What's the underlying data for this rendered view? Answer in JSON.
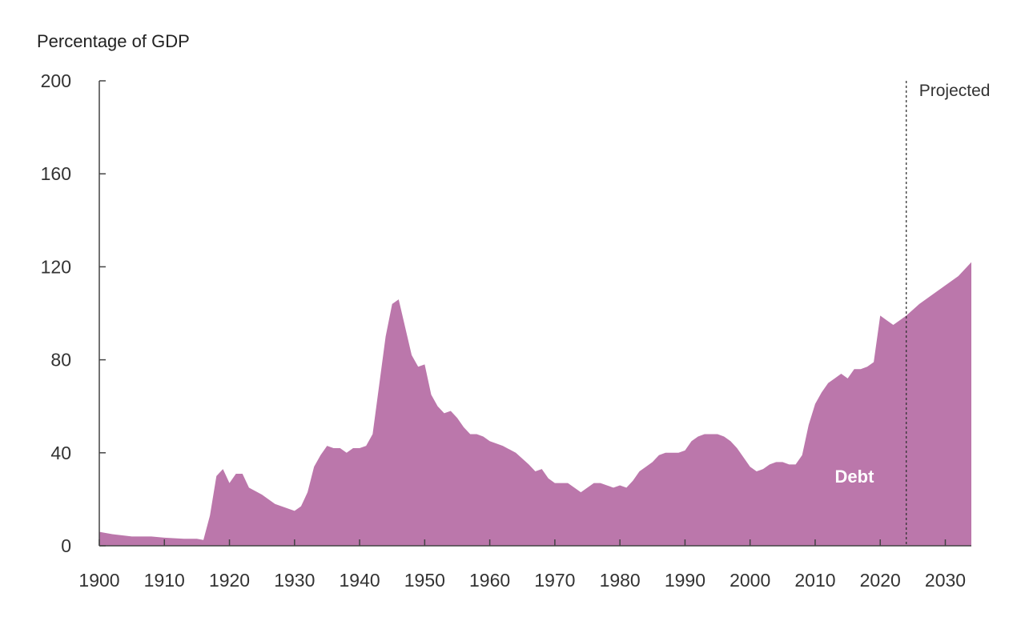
{
  "chart_data": {
    "type": "area",
    "ylabel": "Percentage of GDP",
    "xlim": [
      1900,
      2034
    ],
    "ylim": [
      0,
      200
    ],
    "yticks": [
      0,
      40,
      80,
      120,
      160,
      200
    ],
    "xticks": [
      1900,
      1910,
      1920,
      1930,
      1940,
      1950,
      1960,
      1970,
      1980,
      1990,
      2000,
      2010,
      2020,
      2030
    ],
    "projection_start": 2024,
    "projection_label": "Projected",
    "series": [
      {
        "name": "Debt",
        "color": "#bb77ab",
        "points": [
          [
            1900,
            6
          ],
          [
            1902,
            5
          ],
          [
            1905,
            4
          ],
          [
            1908,
            4
          ],
          [
            1910,
            3.5
          ],
          [
            1913,
            3
          ],
          [
            1915,
            3
          ],
          [
            1916,
            2.5
          ],
          [
            1917,
            13
          ],
          [
            1918,
            30
          ],
          [
            1919,
            33
          ],
          [
            1920,
            27
          ],
          [
            1921,
            31
          ],
          [
            1922,
            31
          ],
          [
            1923,
            25
          ],
          [
            1925,
            22
          ],
          [
            1927,
            18
          ],
          [
            1929,
            16
          ],
          [
            1930,
            15
          ],
          [
            1931,
            17
          ],
          [
            1932,
            23
          ],
          [
            1933,
            34
          ],
          [
            1934,
            39
          ],
          [
            1935,
            43
          ],
          [
            1936,
            42
          ],
          [
            1937,
            42
          ],
          [
            1938,
            40
          ],
          [
            1939,
            42
          ],
          [
            1940,
            42
          ],
          [
            1941,
            43
          ],
          [
            1942,
            48
          ],
          [
            1943,
            69
          ],
          [
            1944,
            90
          ],
          [
            1945,
            104
          ],
          [
            1946,
            106
          ],
          [
            1947,
            94
          ],
          [
            1948,
            82
          ],
          [
            1949,
            77
          ],
          [
            1950,
            78
          ],
          [
            1951,
            65
          ],
          [
            1952,
            60
          ],
          [
            1953,
            57
          ],
          [
            1954,
            58
          ],
          [
            1955,
            55
          ],
          [
            1956,
            51
          ],
          [
            1957,
            48
          ],
          [
            1958,
            48
          ],
          [
            1959,
            47
          ],
          [
            1960,
            45
          ],
          [
            1962,
            43
          ],
          [
            1964,
            40
          ],
          [
            1966,
            35
          ],
          [
            1967,
            32
          ],
          [
            1968,
            33
          ],
          [
            1969,
            29
          ],
          [
            1970,
            27
          ],
          [
            1972,
            27
          ],
          [
            1973,
            25
          ],
          [
            1974,
            23
          ],
          [
            1975,
            25
          ],
          [
            1976,
            27
          ],
          [
            1977,
            27
          ],
          [
            1978,
            26
          ],
          [
            1979,
            25
          ],
          [
            1980,
            26
          ],
          [
            1981,
            25
          ],
          [
            1982,
            28
          ],
          [
            1983,
            32
          ],
          [
            1984,
            34
          ],
          [
            1985,
            36
          ],
          [
            1986,
            39
          ],
          [
            1987,
            40
          ],
          [
            1988,
            40
          ],
          [
            1989,
            40
          ],
          [
            1990,
            41
          ],
          [
            1991,
            45
          ],
          [
            1992,
            47
          ],
          [
            1993,
            48
          ],
          [
            1994,
            48
          ],
          [
            1995,
            48
          ],
          [
            1996,
            47
          ],
          [
            1997,
            45
          ],
          [
            1998,
            42
          ],
          [
            1999,
            38
          ],
          [
            2000,
            34
          ],
          [
            2001,
            32
          ],
          [
            2002,
            33
          ],
          [
            2003,
            35
          ],
          [
            2004,
            36
          ],
          [
            2005,
            36
          ],
          [
            2006,
            35
          ],
          [
            2007,
            35
          ],
          [
            2008,
            39
          ],
          [
            2009,
            52
          ],
          [
            2010,
            61
          ],
          [
            2011,
            66
          ],
          [
            2012,
            70
          ],
          [
            2013,
            72
          ],
          [
            2014,
            74
          ],
          [
            2015,
            72
          ],
          [
            2016,
            76
          ],
          [
            2017,
            76
          ],
          [
            2018,
            77
          ],
          [
            2019,
            79
          ],
          [
            2020,
            99
          ],
          [
            2021,
            97
          ],
          [
            2022,
            95
          ],
          [
            2023,
            97
          ],
          [
            2024,
            99
          ],
          [
            2026,
            104
          ],
          [
            2028,
            108
          ],
          [
            2030,
            112
          ],
          [
            2032,
            116
          ],
          [
            2034,
            122
          ]
        ]
      }
    ]
  }
}
